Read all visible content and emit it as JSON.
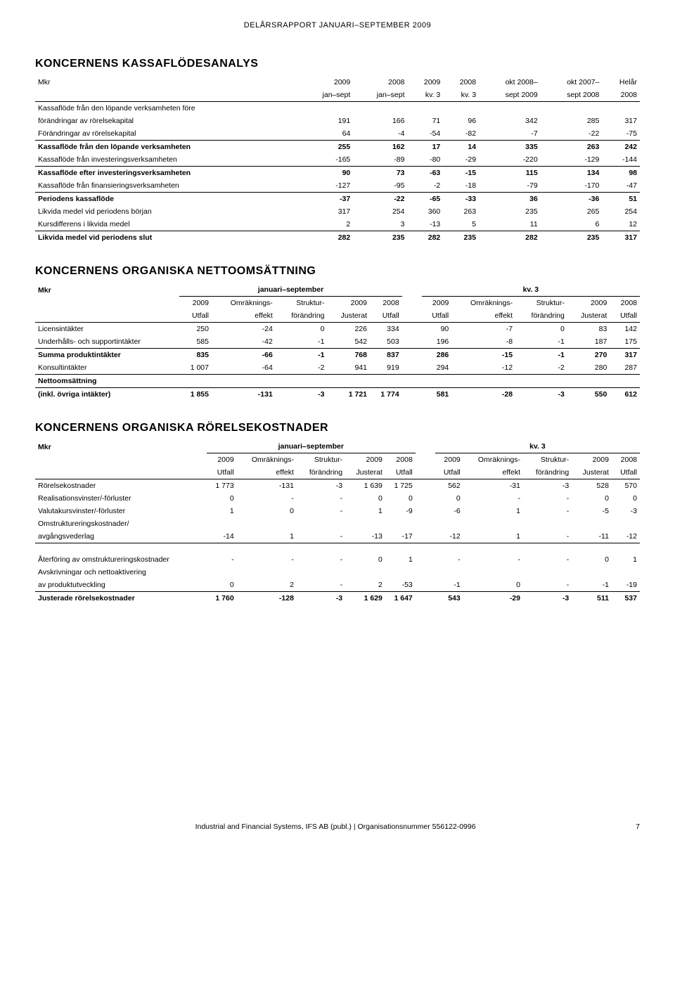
{
  "page_header": "DELÅRSRAPPORT JANUARI–SEPTEMBER 2009",
  "footer_text": "Industrial and Financial Systems, IFS AB (publ.) | Organisationsnummer 556122-0996",
  "page_number": "7",
  "table1": {
    "title": "KONCERNENS KASSAFLÖDESANALYS",
    "unit": "Mkr",
    "cols": [
      "2009 jan–sept",
      "2008 jan–sept",
      "2009 kv. 3",
      "2008 kv. 3",
      "okt 2008– sept 2009",
      "okt 2007– sept 2008",
      "Helår 2008"
    ],
    "col_top": [
      "2009",
      "2008",
      "2009",
      "2008",
      "okt 2008–",
      "okt 2007–",
      "Helår"
    ],
    "col_bot": [
      "jan–sept",
      "jan–sept",
      "kv. 3",
      "kv. 3",
      "sept 2009",
      "sept 2008",
      "2008"
    ],
    "rows": [
      {
        "label": "Kassaflöde från den löpande verksamheten före",
        "v": [
          "",
          "",
          "",
          "",
          "",
          "",
          ""
        ],
        "nobold": true
      },
      {
        "label": "förändringar av rörelsekapital",
        "v": [
          "191",
          "166",
          "71",
          "96",
          "342",
          "285",
          "317"
        ]
      },
      {
        "label": "Förändringar av rörelsekapital",
        "v": [
          "64",
          "-4",
          "-54",
          "-82",
          "-7",
          "-22",
          "-75"
        ],
        "underline": true
      },
      {
        "label": "Kassaflöde från den löpande verksamheten",
        "v": [
          "255",
          "162",
          "17",
          "14",
          "335",
          "263",
          "242"
        ],
        "bold": true
      },
      {
        "label": "Kassaflöde från investeringsverksamheten",
        "v": [
          "-165",
          "-89",
          "-80",
          "-29",
          "-220",
          "-129",
          "-144"
        ],
        "underline": true
      },
      {
        "label": "Kassaflöde efter investeringsverksamheten",
        "v": [
          "90",
          "73",
          "-63",
          "-15",
          "115",
          "134",
          "98"
        ],
        "bold": true
      },
      {
        "label": "Kassaflöde från finansieringsverksamheten",
        "v": [
          "-127",
          "-95",
          "-2",
          "-18",
          "-79",
          "-170",
          "-47"
        ],
        "underline": true
      },
      {
        "label": "Periodens kassaflöde",
        "v": [
          "-37",
          "-22",
          "-65",
          "-33",
          "36",
          "-36",
          "51"
        ],
        "bold": true
      },
      {
        "label": "Likvida medel vid periodens början",
        "v": [
          "317",
          "254",
          "360",
          "263",
          "235",
          "265",
          "254"
        ]
      },
      {
        "label": "Kursdifferens i likvida medel",
        "v": [
          "2",
          "3",
          "-13",
          "5",
          "11",
          "6",
          "12"
        ],
        "underline": true
      },
      {
        "label": "Likvida medel vid periodens slut",
        "v": [
          "282",
          "235",
          "282",
          "235",
          "282",
          "235",
          "317"
        ],
        "bold": true
      }
    ]
  },
  "table2": {
    "title": "KONCERNENS ORGANISKA NETTOOMSÄTTNING",
    "unit": "Mkr",
    "group_left": "januari–september",
    "group_right": "kv. 3",
    "col_top": [
      "2009",
      "Omräknings-",
      "Struktur-",
      "2009",
      "2008",
      "2009",
      "Omräknings-",
      "Struktur-",
      "2009",
      "2008"
    ],
    "col_bot": [
      "Utfall",
      "effekt",
      "förändring",
      "Justerat",
      "Utfall",
      "Utfall",
      "effekt",
      "förändring",
      "Justerat",
      "Utfall"
    ],
    "rows": [
      {
        "label": "Licensintäkter",
        "v": [
          "250",
          "-24",
          "0",
          "226",
          "334",
          "90",
          "-7",
          "0",
          "83",
          "142"
        ]
      },
      {
        "label": "Underhålls- och supportintäkter",
        "v": [
          "585",
          "-42",
          "-1",
          "542",
          "503",
          "196",
          "-8",
          "-1",
          "187",
          "175"
        ],
        "underline": true
      },
      {
        "label": "Summa produktintäkter",
        "v": [
          "835",
          "-66",
          "-1",
          "768",
          "837",
          "286",
          "-15",
          "-1",
          "270",
          "317"
        ],
        "bold": true
      },
      {
        "label": "Konsultintäkter",
        "v": [
          "1 007",
          "-64",
          "-2",
          "941",
          "919",
          "294",
          "-12",
          "-2",
          "280",
          "287"
        ],
        "underline": true
      },
      {
        "label": "Nettoomsättning",
        "v": [
          "",
          "",
          "",
          "",
          "",
          "",
          "",
          "",
          "",
          ""
        ],
        "boldlabel": true
      },
      {
        "label": "(inkl. övriga intäkter)",
        "v": [
          "1 855",
          "-131",
          "-3",
          "1 721",
          "1 774",
          "581",
          "-28",
          "-3",
          "550",
          "612"
        ],
        "bold": true
      }
    ]
  },
  "table3": {
    "title": "KONCERNENS ORGANISKA RÖRELSEKOSTNADER",
    "unit": "Mkr",
    "group_left": "januari–september",
    "group_right": "kv. 3",
    "col_top": [
      "2009",
      "Omräknings-",
      "Struktur-",
      "2009",
      "2008",
      "2009",
      "Omräknings-",
      "Struktur-",
      "2009",
      "2008"
    ],
    "col_bot": [
      "Utfall",
      "effekt",
      "förändring",
      "Justerat",
      "Utfall",
      "Utfall",
      "effekt",
      "förändring",
      "Justerat",
      "Utfall"
    ],
    "rows": [
      {
        "label": "Rörelsekostnader",
        "v": [
          "1 773",
          "-131",
          "-3",
          "1 639",
          "1 725",
          "562",
          "-31",
          "-3",
          "528",
          "570"
        ]
      },
      {
        "label": "Realisationsvinster/-förluster",
        "v": [
          "0",
          "-",
          "-",
          "0",
          "0",
          "0",
          "-",
          "-",
          "0",
          "0"
        ]
      },
      {
        "label": "Valutakursvinster/-förluster",
        "v": [
          "1",
          "0",
          "-",
          "1",
          "-9",
          "-6",
          "1",
          "-",
          "-5",
          "-3"
        ]
      },
      {
        "label": "Omstruktureringskostnader/",
        "v": [
          "",
          "",
          "",
          "",
          "",
          "",
          "",
          "",
          "",
          ""
        ]
      },
      {
        "label": "avgångsvederlag",
        "v": [
          "-14",
          "1",
          "-",
          "-13",
          "-17",
          "-12",
          "1",
          "-",
          "-11",
          "-12"
        ],
        "underline": true,
        "gap_after": true
      },
      {
        "label": "Återföring av omstruktureringskostnader",
        "v": [
          "-",
          "-",
          "-",
          "0",
          "1",
          "-",
          "-",
          "-",
          "0",
          "1"
        ]
      },
      {
        "label": "Avskrivningar och nettoaktivering",
        "v": [
          "",
          "",
          "",
          "",
          "",
          "",
          "",
          "",
          "",
          ""
        ]
      },
      {
        "label": "av produktutveckling",
        "v": [
          "0",
          "2",
          "-",
          "2",
          "-53",
          "-1",
          "0",
          "-",
          "-1",
          "-19"
        ],
        "underline": true
      },
      {
        "label": "Justerade rörelsekostnader",
        "v": [
          "1 760",
          "-128",
          "-3",
          "1 629",
          "1 647",
          "543",
          "-29",
          "-3",
          "511",
          "537"
        ],
        "bold": true
      }
    ]
  }
}
